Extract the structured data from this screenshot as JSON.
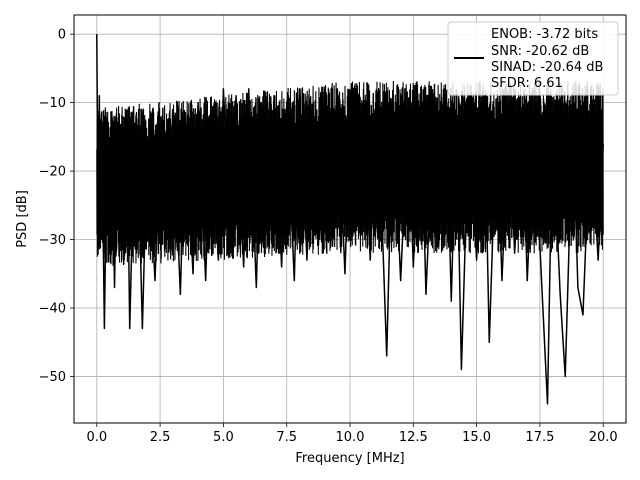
{
  "chart_data": {
    "type": "line",
    "title": "",
    "xlabel": "Frequency [MHz]",
    "ylabel": "PSD [dB]",
    "xlim": [
      -0.9,
      20.9
    ],
    "ylim": [
      -56.8,
      2.8
    ],
    "xticks": [
      0.0,
      2.5,
      5.0,
      7.5,
      10.0,
      12.5,
      15.0,
      17.5,
      20.0
    ],
    "xtick_labels": [
      "0.0",
      "2.5",
      "5.0",
      "7.5",
      "10.0",
      "12.5",
      "15.0",
      "17.5",
      "20.0"
    ],
    "yticks": [
      0,
      -10,
      -20,
      -30,
      -40,
      -50
    ],
    "ytick_labels": [
      "0",
      "−10",
      "−20",
      "−30",
      "−40",
      "−50"
    ],
    "grid": true,
    "legend_position": "top-right",
    "legend_lines": [
      "ENOB: -3.72 bits",
      "SNR: -20.62 dB",
      "SINAD: -20.64 dB",
      "SFDR: 6.61"
    ],
    "series": [
      {
        "color": "#000000",
        "x": [
          0.0,
          0.05,
          0.1,
          0.15,
          0.2,
          0.3,
          0.4,
          0.5,
          0.6,
          0.7,
          0.8,
          1.0,
          1.2,
          1.3,
          1.5,
          1.7,
          1.8,
          2.0,
          2.3,
          2.5,
          2.8,
          3.0,
          3.3,
          3.5,
          3.8,
          4.0,
          4.3,
          4.5,
          4.8,
          5.0,
          5.3,
          5.5,
          5.8,
          6.0,
          6.3,
          6.5,
          6.8,
          7.0,
          7.3,
          7.5,
          7.8,
          8.0,
          8.3,
          8.5,
          8.8,
          9.0,
          9.3,
          9.5,
          9.8,
          10.0,
          10.3,
          10.5,
          10.8,
          11.0,
          11.3,
          11.45,
          11.7,
          12.0,
          12.3,
          12.5,
          12.8,
          13.0,
          13.3,
          13.5,
          13.8,
          14.0,
          14.2,
          14.4,
          14.7,
          15.0,
          15.3,
          15.5,
          15.8,
          16.0,
          16.3,
          16.5,
          16.8,
          17.0,
          17.3,
          17.5,
          17.8,
          18.0,
          18.3,
          18.5,
          18.8,
          19.0,
          19.2,
          19.5,
          19.8,
          20.0
        ],
        "y": [
          0,
          -27,
          -9,
          -30,
          -14,
          -43,
          -15,
          -32,
          -13,
          -37,
          -16,
          -29,
          -14,
          -43,
          -13,
          -28,
          -43,
          -15,
          -36,
          -14,
          -30,
          -11,
          -38,
          -12,
          -35,
          -10,
          -36,
          -11,
          -33,
          -8,
          -31,
          -9,
          -34,
          -8,
          -37,
          -10,
          -29,
          -9,
          -34,
          -10,
          -36,
          -8,
          -33,
          -11,
          -30,
          -9,
          -31,
          -8,
          -35,
          -12,
          -28,
          -10,
          -33,
          -11,
          -31,
          -47,
          -10,
          -36,
          -11,
          -34,
          -9,
          -38,
          -12,
          -31,
          -10,
          -39,
          -11,
          -49,
          -12,
          -33,
          -9,
          -45,
          -11,
          -36,
          -10,
          -32,
          -12,
          -36,
          -10,
          -31,
          -54,
          -13,
          -38,
          -50,
          -12,
          -37,
          -41,
          -13,
          -33,
          -16
        ]
      }
    ]
  }
}
